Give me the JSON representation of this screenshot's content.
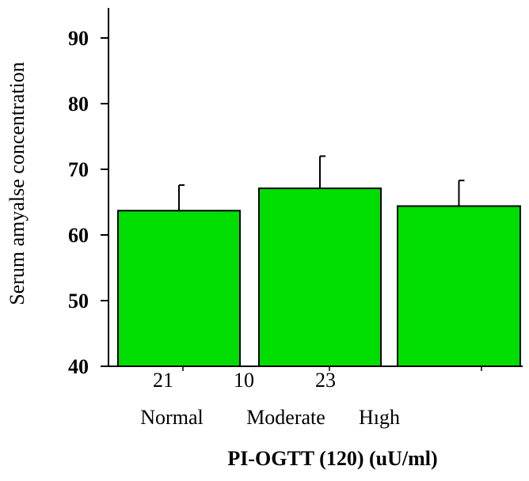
{
  "chart_data": {
    "type": "bar",
    "categories": [
      "Normal",
      "Moderate",
      "Hıgh"
    ],
    "values": [
      63.7,
      67.1,
      64.4
    ],
    "error": [
      3.9,
      4.9,
      3.9
    ],
    "counts": [
      "21",
      "10",
      "23"
    ],
    "xlabel": "PI-OGTT (120) (uU/ml)",
    "ylabel": "Serum amyalse concentration",
    "ylim": [
      40,
      95
    ],
    "yticks": [
      40,
      50,
      60,
      70,
      80,
      90
    ],
    "ytick_labels": [
      "40",
      "50",
      "60",
      "70",
      "80",
      "90"
    ],
    "grid": false,
    "legend": "none",
    "colors": {
      "bar_fill": "#00dd00",
      "bar_stroke": "#000000",
      "axis": "#000000"
    }
  }
}
